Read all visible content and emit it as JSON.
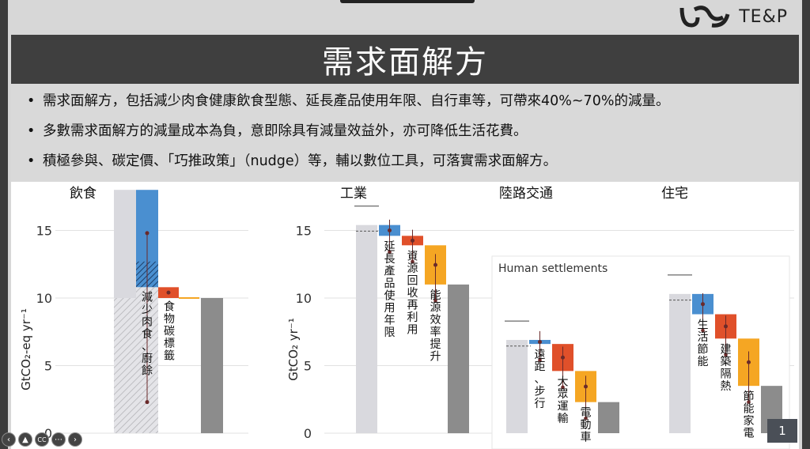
{
  "logo": {
    "text": "TE&P"
  },
  "title": "需求面解方",
  "bullets": [
    "需求面解方，包括減少肉食健康飲食型態、延長產品使用年限、自行車等，可帶來40%~70%的減量。",
    "多數需求面解方的減量成本為負，意即除具有減量效益外，亦可降低生活花費。",
    "積極參與、碳定價、「巧推政策」（nudge）等，輔以數位工具，可落實需求面解方。"
  ],
  "bullet_symbol": "•",
  "chart_data": [
    {
      "type": "bar",
      "subtitle": "飲食",
      "ylabel": "GtCO₂-eq yr⁻¹",
      "ylim": [
        0,
        18
      ],
      "yticks": [
        "0",
        "5",
        "10",
        "15"
      ],
      "bars": [
        {
          "label": "",
          "from": 0,
          "to": 18,
          "kind": "baseline"
        },
        {
          "label": "減少肉食、廚餘",
          "from": 18,
          "to": 10.8,
          "kind": "reduction"
        },
        {
          "label": "食物碳標籤",
          "from": 10.8,
          "to": 10,
          "kind": "reduction"
        },
        {
          "label": "",
          "from": 0,
          "to": 10,
          "kind": "result"
        }
      ]
    },
    {
      "type": "bar",
      "ylabel": "GtCO₂ yr⁻¹",
      "ylim": [
        0,
        18
      ],
      "yticks": [
        "0",
        "5",
        "10",
        "15"
      ],
      "groups": [
        {
          "name": "工業",
          "bars": [
            {
              "label": "",
              "from": 0,
              "to": 15.4,
              "kind": "baseline"
            },
            {
              "label": "延長產品使用年限",
              "from": 15.4,
              "to": 14.6,
              "kind": "reduction"
            },
            {
              "label": "資源回收再利用",
              "from": 14.6,
              "to": 13.9,
              "kind": "reduction"
            },
            {
              "label": "能源效率提升",
              "from": 13.9,
              "to": 11,
              "kind": "reduction"
            },
            {
              "label": "",
              "from": 0,
              "to": 11,
              "kind": "result"
            }
          ]
        },
        {
          "name": "陸路交通",
          "bars": [
            {
              "label": "",
              "from": 0,
              "to": 6.9,
              "kind": "baseline"
            },
            {
              "label": "遠距、步行",
              "from": 6.9,
              "to": 6.6,
              "kind": "reduction"
            },
            {
              "label": "大眾運輸",
              "from": 6.6,
              "to": 4.6,
              "kind": "reduction"
            },
            {
              "label": "電動車",
              "from": 4.6,
              "to": 2.3,
              "kind": "reduction"
            },
            {
              "label": "",
              "from": 0,
              "to": 2.3,
              "kind": "result"
            }
          ]
        },
        {
          "name": "住宅",
          "bars": [
            {
              "label": "",
              "from": 0,
              "to": 10.3,
              "kind": "baseline"
            },
            {
              "label": "生活節能",
              "from": 10.3,
              "to": 8.8,
              "kind": "reduction"
            },
            {
              "label": "建築隔熱",
              "from": 8.8,
              "to": 7,
              "kind": "reduction"
            },
            {
              "label": "節能家電",
              "from": 7,
              "to": 3.5,
              "kind": "reduction"
            },
            {
              "label": "",
              "from": 0,
              "to": 3.5,
              "kind": "result"
            }
          ]
        }
      ],
      "annotation": "Human settlements"
    }
  ],
  "page_number": "1",
  "controls": [
    "prev-icon",
    "pointer-icon",
    "cc-icon",
    "more-icon",
    "next-icon"
  ],
  "colors": {
    "blue": "#4a8fd0",
    "red": "#e0502a",
    "orange": "#f5a623",
    "baseline": "#d9d9de",
    "result": "#8c8c8c",
    "title_bg": "#3f3f3f"
  }
}
